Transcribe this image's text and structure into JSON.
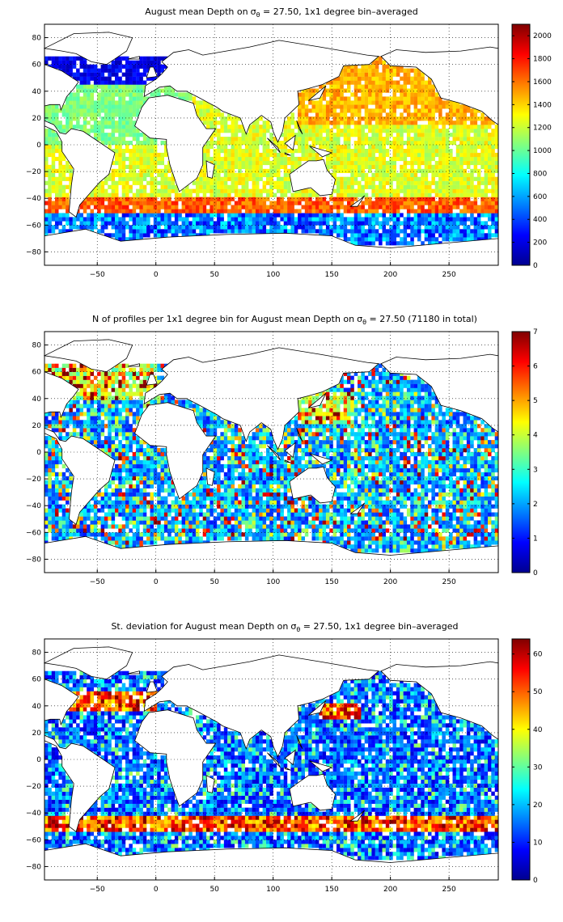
{
  "figure": {
    "background": "#ffffff",
    "colormap": [
      "#00008f",
      "#0000ff",
      "#0080ff",
      "#00ffff",
      "#80ff80",
      "#ffff00",
      "#ff8000",
      "#ff0000",
      "#800000"
    ],
    "land_color": "#ffffff",
    "coastline_color": "#000000",
    "grid": "dotted"
  },
  "chart_data": [
    {
      "type": "heatmap",
      "title_prefix": "August mean Depth on",
      "title_symbol": "σ",
      "title_subscript": "θ",
      "title_suffix": " = 27.50, 1x1 degree bin–averaged",
      "xlim": [
        -95,
        292
      ],
      "ylim": [
        -90,
        90
      ],
      "xticks": [
        -50,
        0,
        50,
        100,
        150,
        200,
        250
      ],
      "xtick_labels": [
        "−50",
        "0",
        "50",
        "100",
        "150",
        "200",
        "250"
      ],
      "yticks": [
        80,
        60,
        40,
        20,
        0,
        -20,
        -40,
        -60,
        -80
      ],
      "ytick_labels": [
        "80",
        "60",
        "40",
        "20",
        "0",
        "−20",
        "−40",
        "−60",
        "−80"
      ],
      "clim": [
        0,
        2100
      ],
      "colorbar_ticks": [
        0,
        200,
        400,
        600,
        800,
        1000,
        1200,
        1400,
        1600,
        1800,
        2000
      ],
      "colorbar_labels": [
        "0",
        "200",
        "400",
        "600",
        "800",
        "1000",
        "1200",
        "1400",
        "1600",
        "1800",
        "2000"
      ],
      "field": "depth"
    },
    {
      "type": "heatmap",
      "title_prefix": "N of profiles per 1x1 degree bin for August mean Depth on",
      "title_symbol": "σ",
      "title_subscript": "θ",
      "title_suffix": " = 27.50 (71180 in total)",
      "xlim": [
        -95,
        292
      ],
      "ylim": [
        -90,
        90
      ],
      "xticks": [
        -50,
        0,
        50,
        100,
        150,
        200,
        250
      ],
      "xtick_labels": [
        "−50",
        "0",
        "50",
        "100",
        "150",
        "200",
        "250"
      ],
      "yticks": [
        80,
        60,
        40,
        20,
        0,
        -20,
        -40,
        -60,
        -80
      ],
      "ytick_labels": [
        "80",
        "60",
        "40",
        "20",
        "0",
        "−20",
        "−40",
        "−60",
        "−80"
      ],
      "clim": [
        0,
        7
      ],
      "colorbar_ticks": [
        0,
        1,
        2,
        3,
        4,
        5,
        6,
        7
      ],
      "colorbar_labels": [
        "0",
        "1",
        "2",
        "3",
        "4",
        "5",
        "6",
        "7"
      ],
      "field": "count"
    },
    {
      "type": "heatmap",
      "title_prefix": "St. deviation for August mean Depth on",
      "title_symbol": "σ",
      "title_subscript": "θ",
      "title_suffix": " = 27.50, 1x1 degree bin–averaged",
      "xlim": [
        -95,
        292
      ],
      "ylim": [
        -90,
        90
      ],
      "xticks": [
        -50,
        0,
        50,
        100,
        150,
        200,
        250
      ],
      "xtick_labels": [
        "−50",
        "0",
        "50",
        "100",
        "150",
        "200",
        "250"
      ],
      "yticks": [
        80,
        60,
        40,
        20,
        0,
        -20,
        -40,
        -60,
        -80
      ],
      "ytick_labels": [
        "80",
        "60",
        "40",
        "20",
        "0",
        "−20",
        "−40",
        "−60",
        "−80"
      ],
      "clim": [
        0,
        64
      ],
      "colorbar_ticks": [
        0,
        10,
        20,
        30,
        40,
        50,
        60
      ],
      "colorbar_labels": [
        "0",
        "10",
        "20",
        "30",
        "40",
        "50",
        "60"
      ],
      "field": "stdev"
    }
  ]
}
